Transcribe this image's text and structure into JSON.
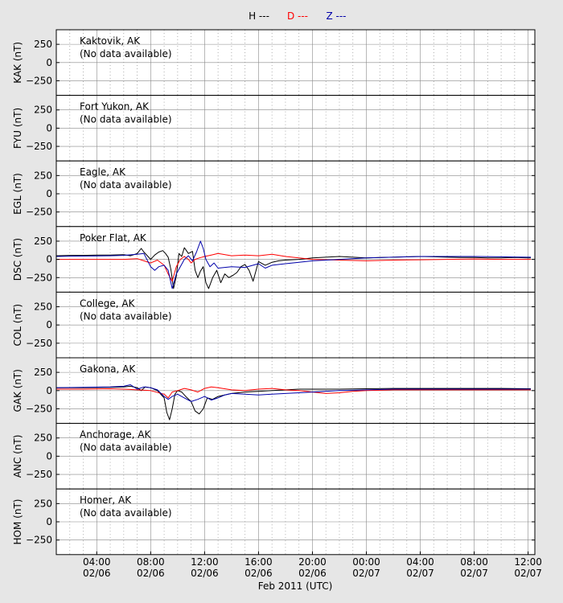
{
  "legend": [
    {
      "label": "H ---",
      "color": "#000000"
    },
    {
      "label": "D ---",
      "color": "#ff0000"
    },
    {
      "label": "Z ---",
      "color": "#0000aa"
    }
  ],
  "xlabel": "Feb 2011 (UTC)",
  "chart_data": {
    "type": "line",
    "xlabel": "Feb 2011 (UTC)",
    "x_unit": "hours since 2011-02-06 00:00 UTC",
    "xlim": [
      1,
      36.5
    ],
    "ylim": [
      -450,
      450
    ],
    "yticks": [
      250,
      0,
      -250
    ],
    "grid": true,
    "legend_position": "top",
    "series_names": [
      "H",
      "D",
      "Z"
    ],
    "series_colors": {
      "H": "#000000",
      "D": "#ff0000",
      "Z": "#0000aa"
    },
    "xticks": [
      {
        "x": 4,
        "time": "04:00",
        "date": "02/06"
      },
      {
        "x": 8,
        "time": "08:00",
        "date": "02/06"
      },
      {
        "x": 12,
        "time": "12:00",
        "date": "02/06"
      },
      {
        "x": 16,
        "time": "16:00",
        "date": "02/06"
      },
      {
        "x": 20,
        "time": "20:00",
        "date": "02/06"
      },
      {
        "x": 24,
        "time": "00:00",
        "date": "02/07"
      },
      {
        "x": 28,
        "time": "04:00",
        "date": "02/07"
      },
      {
        "x": 32,
        "time": "08:00",
        "date": "02/07"
      },
      {
        "x": 36,
        "time": "12:00",
        "date": "02/07"
      }
    ],
    "panels": [
      {
        "code": "KAK",
        "ylabel": "KAK (nT)",
        "station": "Kaktovik, AK",
        "note": "(No data available)",
        "series": []
      },
      {
        "code": "FYU",
        "ylabel": "FYU (nT)",
        "station": "Fort Yukon, AK",
        "note": "(No data available)",
        "series": []
      },
      {
        "code": "EGL",
        "ylabel": "EGL (nT)",
        "station": "Eagle, AK",
        "note": "(No data available)",
        "series": []
      },
      {
        "code": "DSC",
        "ylabel": "DSC (nT)",
        "station": "Poker Flat, AK",
        "note": "",
        "series": [
          {
            "name": "H",
            "x": [
              1,
              2,
              3,
              4,
              5,
              6,
              6.5,
              7,
              7.3,
              7.5,
              7.8,
              8,
              8.3,
              8.6,
              8.9,
              9.1,
              9.3,
              9.5,
              9.7,
              9.9,
              10.1,
              10.3,
              10.5,
              10.8,
              11.1,
              11.3,
              11.5,
              11.7,
              11.9,
              12.1,
              12.3,
              12.6,
              12.9,
              13.2,
              13.5,
              13.8,
              14.1,
              14.4,
              14.7,
              15,
              15.3,
              15.6,
              16,
              16.5,
              17,
              17.5,
              18,
              19,
              20,
              21,
              22,
              23,
              24,
              25,
              26,
              27,
              28,
              29,
              30,
              31,
              32,
              33,
              34,
              35,
              36,
              36.2
            ],
            "y": [
              50,
              55,
              55,
              60,
              60,
              65,
              50,
              80,
              150,
              100,
              40,
              0,
              60,
              100,
              120,
              80,
              30,
              -140,
              -400,
              -230,
              80,
              40,
              160,
              80,
              110,
              -150,
              -250,
              -160,
              -100,
              -320,
              -400,
              -250,
              -150,
              -320,
              -200,
              -250,
              -220,
              -180,
              -100,
              -70,
              -150,
              -300,
              -30,
              -80,
              -40,
              -20,
              -10,
              0,
              20,
              30,
              40,
              30,
              20,
              25,
              30,
              35,
              40,
              35,
              30,
              25,
              25,
              20,
              20,
              25,
              20,
              20
            ]
          },
          {
            "name": "D",
            "x": [
              1,
              3,
              5,
              6,
              7,
              7.5,
              8,
              8.5,
              9,
              9.3,
              9.6,
              9.9,
              10.2,
              10.5,
              10.8,
              11,
              11.3,
              11.6,
              12,
              12.5,
              13,
              14,
              15,
              16,
              17,
              18,
              19,
              20,
              22,
              24,
              26,
              28,
              30,
              32,
              34,
              36,
              36.2
            ],
            "y": [
              0,
              0,
              0,
              0,
              10,
              -20,
              -50,
              -10,
              -80,
              -200,
              -300,
              -100,
              0,
              40,
              0,
              -50,
              0,
              20,
              40,
              60,
              80,
              50,
              60,
              50,
              70,
              40,
              20,
              0,
              -10,
              -20,
              -10,
              -5,
              0,
              5,
              0,
              0,
              0
            ]
          },
          {
            "name": "Z",
            "x": [
              1,
              3,
              5,
              6,
              7,
              7.5,
              8,
              8.3,
              8.6,
              9,
              9.3,
              9.6,
              9.9,
              10.2,
              10.5,
              10.8,
              11.1,
              11.4,
              11.7,
              11.9,
              12.1,
              12.4,
              12.7,
              13,
              14,
              15,
              16,
              16.5,
              17,
              18,
              19,
              20,
              22,
              24,
              26,
              28,
              30,
              32,
              34,
              36,
              36.2
            ],
            "y": [
              40,
              45,
              50,
              55,
              70,
              80,
              -100,
              -150,
              -100,
              -80,
              -150,
              -400,
              -200,
              -100,
              0,
              50,
              -20,
              100,
              250,
              150,
              0,
              -100,
              -50,
              -120,
              -100,
              -110,
              -60,
              -120,
              -80,
              -60,
              -40,
              -20,
              0,
              20,
              30,
              40,
              40,
              40,
              35,
              30,
              30
            ]
          }
        ]
      },
      {
        "code": "COL",
        "ylabel": "COL (nT)",
        "station": "College, AK",
        "note": "(No data available)",
        "series": []
      },
      {
        "code": "GAK",
        "ylabel": "GAK (nT)",
        "station": "Gakona, AK",
        "note": "",
        "series": [
          {
            "name": "H",
            "x": [
              1,
              3,
              5,
              6,
              6.5,
              7,
              7.3,
              7.6,
              8,
              8.5,
              9,
              9.2,
              9.4,
              9.6,
              9.8,
              10,
              10.3,
              10.6,
              11,
              11.3,
              11.6,
              11.9,
              12.2,
              12.6,
              13,
              13.5,
              14,
              15,
              16,
              17,
              18,
              19,
              20,
              22,
              24,
              26,
              28,
              30,
              32,
              34,
              36,
              36.2
            ],
            "y": [
              40,
              40,
              45,
              50,
              60,
              40,
              0,
              50,
              40,
              0,
              -100,
              -300,
              -400,
              -250,
              -50,
              0,
              -20,
              -80,
              -150,
              -280,
              -320,
              -250,
              -100,
              -120,
              -80,
              -60,
              -40,
              -20,
              -10,
              0,
              10,
              20,
              20,
              20,
              25,
              30,
              30,
              30,
              30,
              30,
              25,
              25
            ]
          },
          {
            "name": "D",
            "x": [
              1,
              3,
              5,
              6,
              7,
              8,
              9,
              9.3,
              9.6,
              10,
              10.5,
              11,
              11.5,
              12,
              12.5,
              13,
              14,
              15,
              16,
              17,
              18,
              19,
              20,
              21,
              22,
              23,
              24,
              26,
              28,
              30,
              32,
              34,
              36,
              36.2
            ],
            "y": [
              20,
              20,
              25,
              20,
              10,
              0,
              -50,
              -100,
              -20,
              0,
              30,
              10,
              -20,
              30,
              50,
              40,
              10,
              0,
              20,
              30,
              10,
              0,
              -20,
              -40,
              -30,
              -10,
              0,
              10,
              10,
              10,
              10,
              10,
              10,
              10
            ]
          },
          {
            "name": "Z",
            "x": [
              1,
              3,
              5,
              6,
              6.5,
              7,
              7.5,
              8,
              8.5,
              9,
              9.3,
              9.6,
              10,
              10.5,
              11,
              11.5,
              12,
              12.5,
              13,
              13.5,
              14,
              15,
              16,
              17,
              18,
              20,
              22,
              24,
              26,
              28,
              30,
              32,
              34,
              36,
              36.2
            ],
            "y": [
              40,
              45,
              50,
              60,
              80,
              20,
              50,
              40,
              10,
              -80,
              -120,
              -80,
              -50,
              -100,
              -150,
              -120,
              -80,
              -130,
              -100,
              -60,
              -40,
              -50,
              -60,
              -50,
              -40,
              -20,
              0,
              10,
              20,
              20,
              20,
              20,
              20,
              20,
              20
            ]
          }
        ]
      },
      {
        "code": "ANC",
        "ylabel": "ANC (nT)",
        "station": "Anchorage, AK",
        "note": "(No data available)",
        "series": []
      },
      {
        "code": "HOM",
        "ylabel": "HOM (nT)",
        "station": "Homer, AK",
        "note": "(No data available)",
        "series": []
      }
    ]
  }
}
